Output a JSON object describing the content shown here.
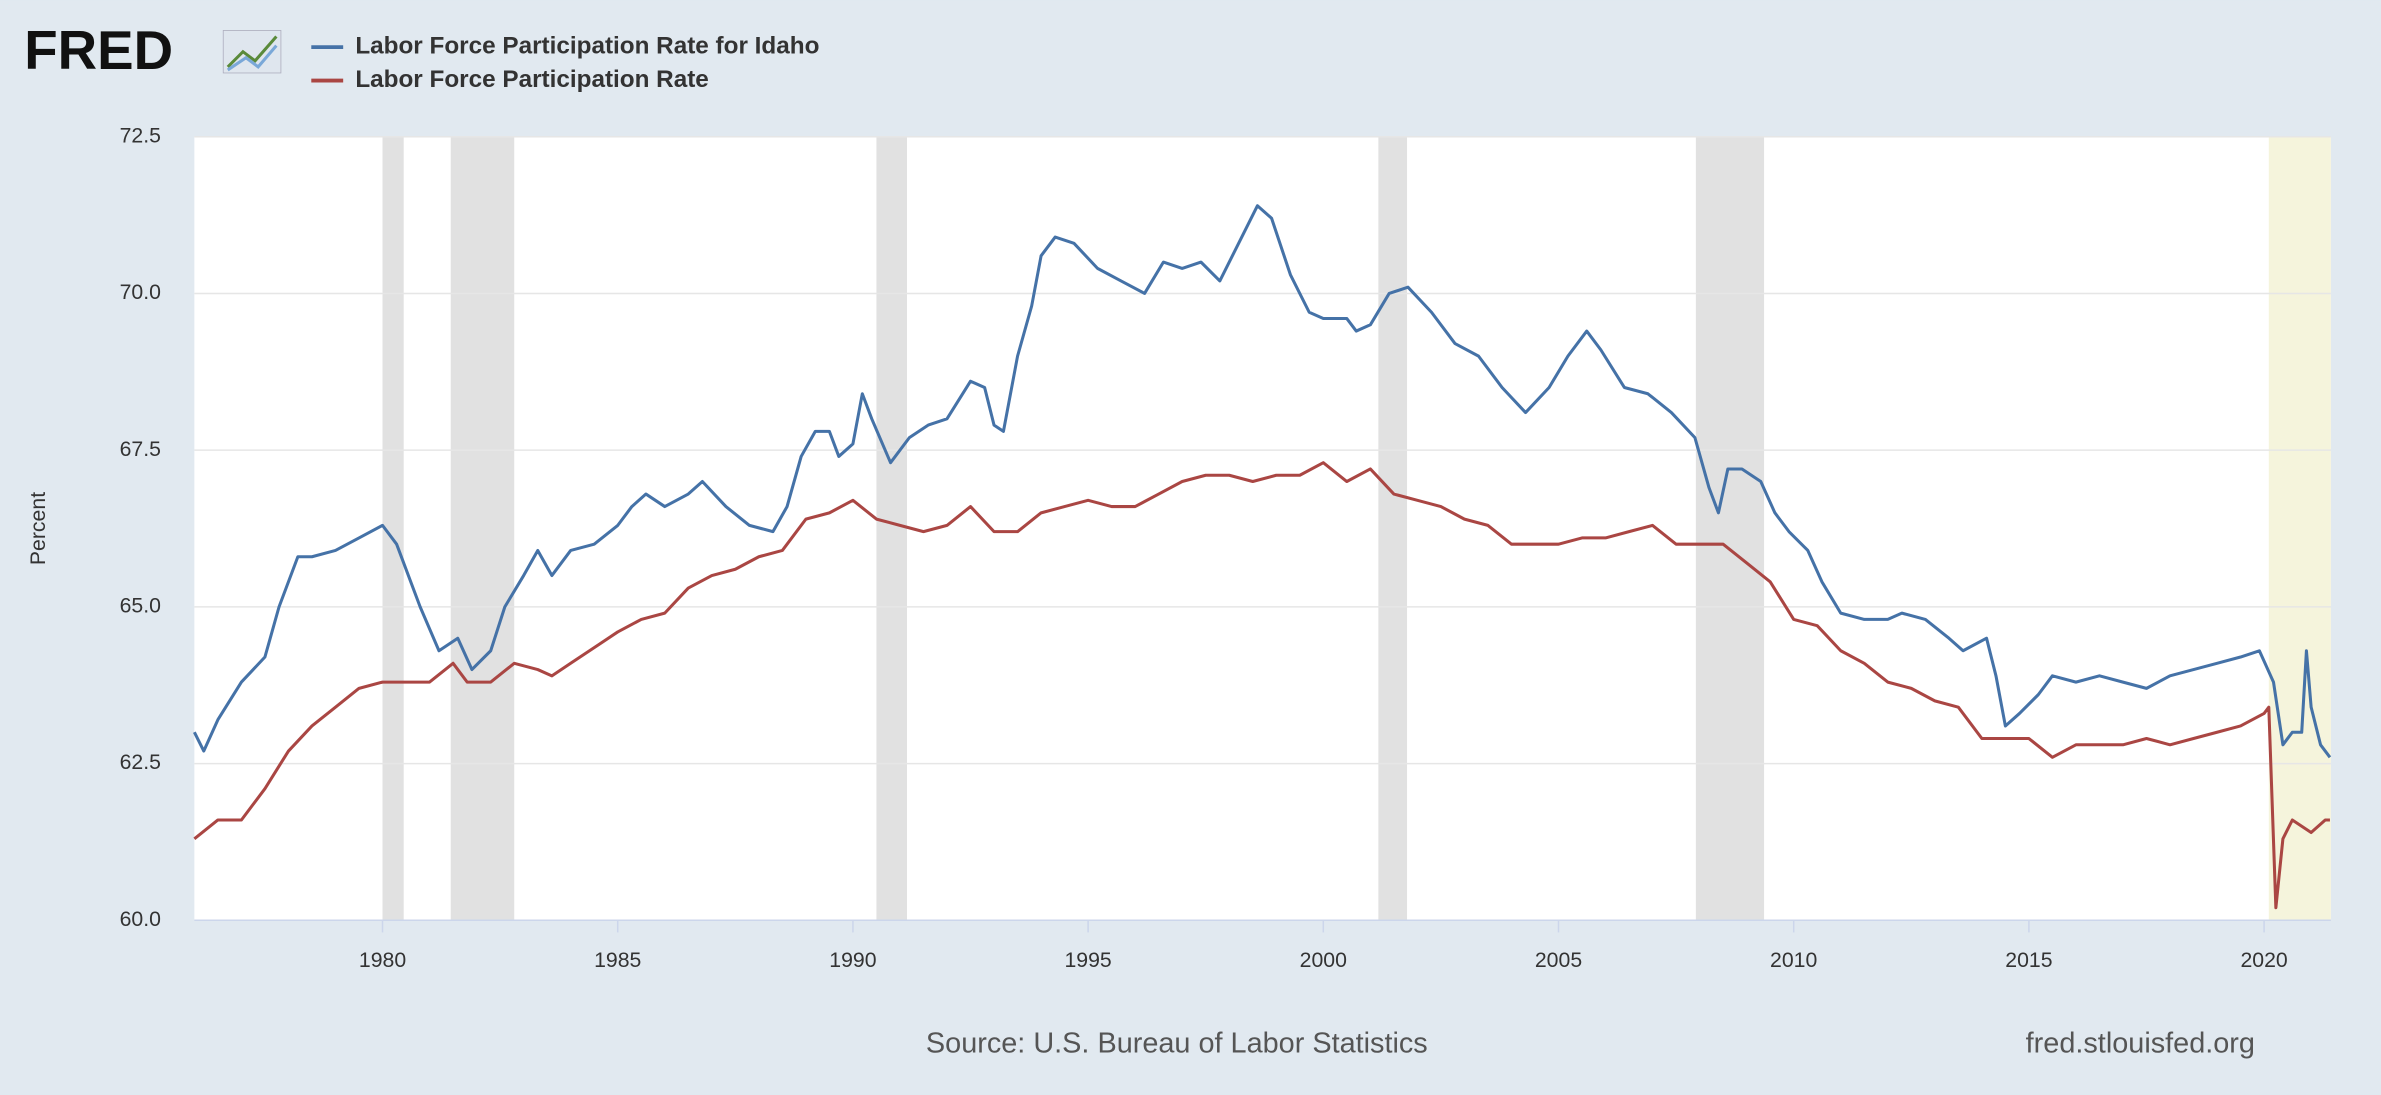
{
  "chart_data": {
    "type": "line",
    "logo": "FRED",
    "ylabel": "Percent",
    "source": "Source: U.S. Bureau of Labor Statistics",
    "credit": "fred.stlouisfed.org",
    "xlim": [
      1976,
      2021.42
    ],
    "xticks": [
      1980,
      1985,
      1990,
      1995,
      2000,
      2005,
      2010,
      2015,
      2020
    ],
    "ylim": [
      60,
      72.5
    ],
    "yticks": [
      {
        "value": 60,
        "label": "60.0"
      },
      62.5,
      {
        "value": 65,
        "label": "65.0"
      },
      67.5,
      {
        "value": 70,
        "label": "70.0"
      },
      72.5
    ],
    "grid": true,
    "recessions": [
      [
        1980.0,
        1980.45
      ],
      [
        1981.45,
        1982.8
      ],
      [
        1990.5,
        1991.15
      ],
      [
        2001.17,
        2001.78
      ],
      [
        2007.92,
        2009.37
      ]
    ],
    "recession_color": "#e1e1e1",
    "highlight": [
      2020.1,
      2021.42
    ],
    "highlight_color": "#f5f4dc",
    "series": [
      {
        "name": "Labor Force Participation Rate for Idaho",
        "color": "#4572a7",
        "x": [
          1976.0,
          1976.2,
          1976.5,
          1977.0,
          1977.5,
          1977.8,
          1978.2,
          1978.5,
          1979.0,
          1979.5,
          1980.0,
          1980.3,
          1980.8,
          1981.2,
          1981.6,
          1981.9,
          1982.3,
          1982.6,
          1983.0,
          1983.3,
          1983.6,
          1984.0,
          1984.5,
          1985.0,
          1985.3,
          1985.6,
          1986.0,
          1986.5,
          1986.8,
          1987.3,
          1987.8,
          1988.3,
          1988.6,
          1988.9,
          1989.2,
          1989.5,
          1989.7,
          1990.0,
          1990.2,
          1990.4,
          1990.8,
          1991.2,
          1991.6,
          1992.0,
          1992.5,
          1992.8,
          1993.0,
          1993.2,
          1993.5,
          1993.8,
          1994.0,
          1994.3,
          1994.7,
          1995.2,
          1995.7,
          1996.2,
          1996.6,
          1997.0,
          1997.4,
          1997.8,
          1998.2,
          1998.6,
          1998.9,
          1999.3,
          1999.7,
          2000.0,
          2000.5,
          2000.7,
          2001.0,
          2001.4,
          2001.8,
          2002.3,
          2002.8,
          2003.3,
          2003.8,
          2004.3,
          2004.8,
          2005.2,
          2005.6,
          2005.9,
          2006.4,
          2006.9,
          2007.4,
          2007.9,
          2008.2,
          2008.4,
          2008.6,
          2008.9,
          2009.3,
          2009.6,
          2009.9,
          2010.3,
          2010.6,
          2011.0,
          2011.5,
          2012.0,
          2012.3,
          2012.8,
          2013.3,
          2013.6,
          2014.1,
          2014.3,
          2014.5,
          2014.8,
          2015.2,
          2015.5,
          2016.0,
          2016.5,
          2017.0,
          2017.5,
          2018.0,
          2018.5,
          2019.0,
          2019.5,
          2019.9,
          2020.2,
          2020.4,
          2020.6,
          2020.8,
          2020.9,
          2021.0,
          2021.2,
          2021.4
        ],
        "values": [
          63.0,
          62.7,
          63.2,
          63.8,
          64.2,
          65.0,
          65.8,
          65.8,
          65.9,
          66.1,
          66.3,
          66.0,
          65.0,
          64.3,
          64.5,
          64.0,
          64.3,
          65.0,
          65.5,
          65.9,
          65.5,
          65.9,
          66.0,
          66.3,
          66.6,
          66.8,
          66.6,
          66.8,
          67.0,
          66.6,
          66.3,
          66.2,
          66.6,
          67.4,
          67.8,
          67.8,
          67.4,
          67.6,
          68.4,
          68.0,
          67.3,
          67.7,
          67.9,
          68.0,
          68.6,
          68.5,
          67.9,
          67.8,
          69.0,
          69.8,
          70.6,
          70.9,
          70.8,
          70.4,
          70.2,
          70.0,
          70.5,
          70.4,
          70.5,
          70.2,
          70.8,
          71.4,
          71.2,
          70.3,
          69.7,
          69.6,
          69.6,
          69.4,
          69.5,
          70.0,
          70.1,
          69.7,
          69.2,
          69.0,
          68.5,
          68.1,
          68.5,
          69.0,
          69.4,
          69.1,
          68.5,
          68.4,
          68.1,
          67.7,
          66.9,
          66.5,
          67.2,
          67.2,
          67.0,
          66.5,
          66.2,
          65.9,
          65.4,
          64.9,
          64.8,
          64.8,
          64.9,
          64.8,
          64.5,
          64.3,
          64.5,
          63.9,
          63.1,
          63.3,
          63.6,
          63.9,
          63.8,
          63.9,
          63.8,
          63.7,
          63.9,
          64.0,
          64.1,
          64.2,
          64.3,
          63.8,
          62.8,
          63.0,
          63.0,
          64.3,
          63.4,
          62.8,
          62.6
        ]
      },
      {
        "name": "Labor Force Participation Rate",
        "color": "#aa4643",
        "x": [
          1976.0,
          1976.5,
          1977.0,
          1977.5,
          1978.0,
          1978.5,
          1979.0,
          1979.5,
          1980.0,
          1980.5,
          1981.0,
          1981.5,
          1981.8,
          1982.3,
          1982.8,
          1983.3,
          1983.6,
          1984.0,
          1984.6,
          1985.0,
          1985.5,
          1986.0,
          1986.5,
          1987.0,
          1987.5,
          1988.0,
          1988.5,
          1989.0,
          1989.5,
          1990.0,
          1990.5,
          1991.0,
          1991.5,
          1992.0,
          1992.5,
          1993.0,
          1993.5,
          1994.0,
          1994.5,
          1995.0,
          1995.5,
          1996.0,
          1996.5,
          1997.0,
          1997.5,
          1998.0,
          1998.5,
          1999.0,
          1999.5,
          2000.0,
          2000.5,
          2001.0,
          2001.5,
          2002.0,
          2002.5,
          2003.0,
          2003.5,
          2004.0,
          2004.5,
          2005.0,
          2005.5,
          2006.0,
          2006.5,
          2007.0,
          2007.5,
          2008.0,
          2008.5,
          2009.0,
          2009.5,
          2010.0,
          2010.5,
          2011.0,
          2011.5,
          2012.0,
          2012.5,
          2013.0,
          2013.5,
          2014.0,
          2014.5,
          2015.0,
          2015.5,
          2016.0,
          2016.5,
          2017.0,
          2017.5,
          2018.0,
          2018.5,
          2019.0,
          2019.5,
          2020.0,
          2020.1,
          2020.25,
          2020.4,
          2020.6,
          2020.8,
          2021.0,
          2021.3,
          2021.4
        ],
        "values": [
          61.3,
          61.6,
          61.6,
          62.1,
          62.7,
          63.1,
          63.4,
          63.7,
          63.8,
          63.8,
          63.8,
          64.1,
          63.8,
          63.8,
          64.1,
          64.0,
          63.9,
          64.1,
          64.4,
          64.6,
          64.8,
          64.9,
          65.3,
          65.5,
          65.6,
          65.8,
          65.9,
          66.4,
          66.5,
          66.7,
          66.4,
          66.3,
          66.2,
          66.3,
          66.6,
          66.2,
          66.2,
          66.5,
          66.6,
          66.7,
          66.6,
          66.6,
          66.8,
          67.0,
          67.1,
          67.1,
          67.0,
          67.1,
          67.1,
          67.3,
          67.0,
          67.2,
          66.8,
          66.7,
          66.6,
          66.4,
          66.3,
          66.0,
          66.0,
          66.0,
          66.1,
          66.1,
          66.2,
          66.3,
          66.0,
          66.0,
          66.0,
          65.7,
          65.4,
          64.8,
          64.7,
          64.3,
          64.1,
          63.8,
          63.7,
          63.5,
          63.4,
          62.9,
          62.9,
          62.9,
          62.6,
          62.8,
          62.8,
          62.8,
          62.9,
          62.8,
          62.9,
          63.0,
          63.1,
          63.3,
          63.4,
          60.2,
          61.3,
          61.6,
          61.5,
          61.4,
          61.6,
          61.6
        ]
      }
    ]
  }
}
